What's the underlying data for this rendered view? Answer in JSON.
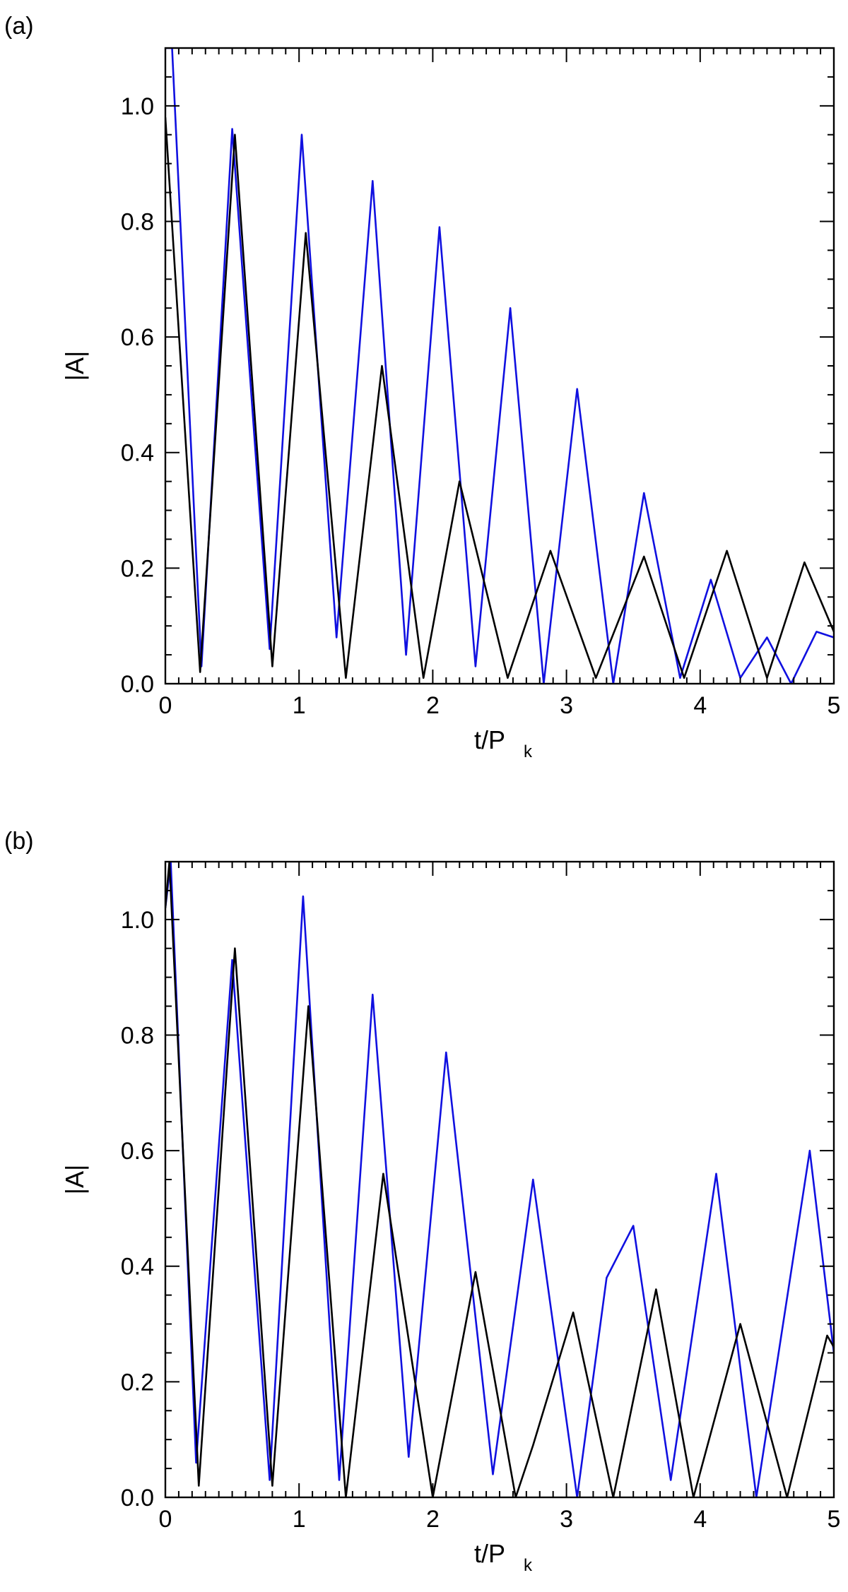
{
  "colors": {
    "blue_series": "#1010e0",
    "black_series": "#000000",
    "axis": "#000000",
    "background": "#ffffff"
  },
  "chart_data": [
    {
      "type": "line",
      "panel_label": "(a)",
      "xlabel_main": "t/P",
      "xlabel_sub": "k",
      "ylabel": "|A|",
      "xlim": [
        0,
        5
      ],
      "ylim": [
        0,
        1.1
      ],
      "x_ticks": [
        0,
        1,
        2,
        3,
        4,
        5
      ],
      "x_tick_labels": [
        "0",
        "1",
        "2",
        "3",
        "4",
        "5"
      ],
      "y_ticks": [
        0,
        0.2,
        0.4,
        0.6,
        0.8,
        1.0
      ],
      "y_tick_labels": [
        "0.0",
        "0.2",
        "0.4",
        "0.6",
        "0.8",
        "1.0"
      ],
      "grid": false,
      "series": [
        {
          "color": "#1010e0",
          "x": [
            0.0,
            0.05,
            0.27,
            0.5,
            0.78,
            1.02,
            1.28,
            1.55,
            1.8,
            2.05,
            2.32,
            2.58,
            2.83,
            3.08,
            3.35,
            3.58,
            3.85,
            4.08,
            4.3,
            4.5,
            4.68,
            4.87,
            5.0
          ],
          "y": [
            1.1,
            1.1,
            0.03,
            0.96,
            0.06,
            0.95,
            0.08,
            0.87,
            0.05,
            0.79,
            0.03,
            0.65,
            0.0,
            0.51,
            0.0,
            0.33,
            0.01,
            0.18,
            0.01,
            0.08,
            0.0,
            0.09,
            0.08
          ]
        },
        {
          "color": "#000000",
          "x": [
            0.0,
            0.26,
            0.52,
            0.8,
            1.05,
            1.35,
            1.62,
            1.93,
            2.2,
            2.56,
            2.88,
            3.22,
            3.58,
            3.88,
            4.2,
            4.5,
            4.78,
            5.0
          ],
          "y": [
            0.98,
            0.02,
            0.95,
            0.03,
            0.78,
            0.01,
            0.55,
            0.01,
            0.35,
            0.01,
            0.23,
            0.01,
            0.22,
            0.01,
            0.23,
            0.01,
            0.21,
            0.09
          ]
        }
      ]
    },
    {
      "type": "line",
      "panel_label": "(b)",
      "xlabel_main": "t/P",
      "xlabel_sub": "k",
      "ylabel": "|A|",
      "xlim": [
        0,
        5
      ],
      "ylim": [
        0,
        1.1
      ],
      "x_ticks": [
        0,
        1,
        2,
        3,
        4,
        5
      ],
      "x_tick_labels": [
        "0",
        "1",
        "2",
        "3",
        "4",
        "5"
      ],
      "y_ticks": [
        0,
        0.2,
        0.4,
        0.6,
        0.8,
        1.0
      ],
      "y_tick_labels": [
        "0.0",
        "0.2",
        "0.4",
        "0.6",
        "0.8",
        "1.0"
      ],
      "grid": false,
      "series": [
        {
          "color": "#1010e0",
          "x": [
            0.0,
            0.04,
            0.23,
            0.5,
            0.78,
            1.03,
            1.3,
            1.55,
            1.82,
            2.1,
            2.45,
            2.75,
            3.08,
            3.3,
            3.5,
            3.78,
            4.12,
            4.42,
            4.82,
            5.0
          ],
          "y": [
            1.02,
            1.1,
            0.06,
            0.93,
            0.03,
            1.04,
            0.03,
            0.87,
            0.07,
            0.77,
            0.04,
            0.55,
            0.0,
            0.38,
            0.47,
            0.03,
            0.56,
            0.0,
            0.6,
            0.25
          ]
        },
        {
          "color": "#000000",
          "x": [
            0.0,
            0.03,
            0.25,
            0.52,
            0.8,
            1.07,
            1.35,
            1.63,
            2.0,
            2.32,
            2.62,
            2.75,
            3.05,
            3.35,
            3.67,
            3.95,
            4.3,
            4.65,
            4.95,
            5.0
          ],
          "y": [
            1.02,
            1.1,
            0.02,
            0.95,
            0.02,
            0.85,
            0.0,
            0.56,
            0.0,
            0.39,
            0.0,
            0.09,
            0.32,
            0.0,
            0.36,
            0.0,
            0.3,
            0.0,
            0.28,
            0.26
          ]
        }
      ]
    }
  ]
}
